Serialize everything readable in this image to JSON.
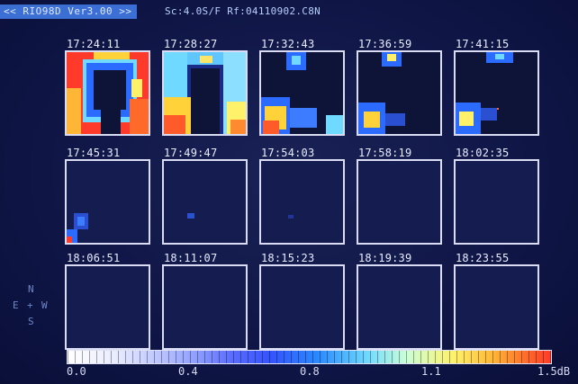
{
  "header": {
    "badge": "<< RIO98D Ver3.00 >>",
    "info": "Sc:4.0S/F  Rf:04110902.C8N"
  },
  "frames": [
    {
      "time": "17:24:11"
    },
    {
      "time": "17:28:27"
    },
    {
      "time": "17:32:43"
    },
    {
      "time": "17:36:59"
    },
    {
      "time": "17:41:15"
    },
    {
      "time": "17:45:31"
    },
    {
      "time": "17:49:47"
    },
    {
      "time": "17:54:03"
    },
    {
      "time": "17:58:19"
    },
    {
      "time": "18:02:35"
    },
    {
      "time": "18:06:51"
    },
    {
      "time": "18:11:07"
    },
    {
      "time": "18:15:23"
    },
    {
      "time": "18:19:39"
    },
    {
      "time": "18:23:55"
    }
  ],
  "compass": {
    "n": "N",
    "e": "E",
    "w": "W",
    "s": "S"
  },
  "scale": {
    "labels": [
      "0.0",
      "0.4",
      "0.8",
      "1.1",
      "1.5dB"
    ],
    "colors": {
      "low": "#ffffff",
      "mid": "#3453ff",
      "high": "#ff3a2a"
    }
  }
}
